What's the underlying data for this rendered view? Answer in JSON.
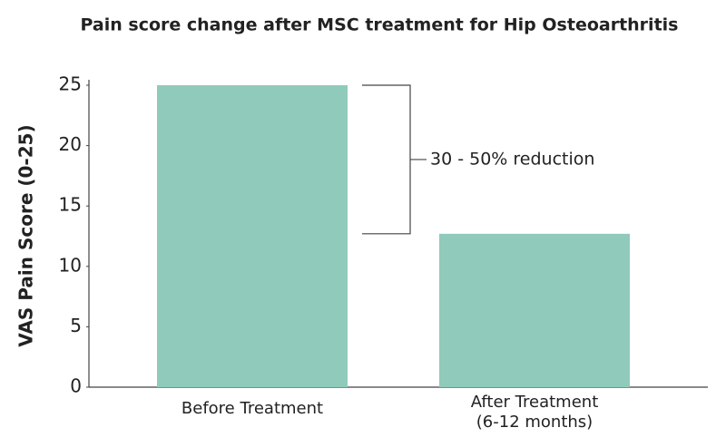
{
  "chart_data": {
    "type": "bar",
    "title": "Pain score change after MSC treatment for Hip Osteoarthritis",
    "y_label": "VAS Pain Score (0-25)",
    "categories": [
      "Before Treatment",
      "After Treatment\n(6-12 months)"
    ],
    "values": [
      25,
      12.7
    ],
    "color": "#8fcabb",
    "ylim": [
      0,
      25
    ],
    "yticks": [
      0,
      5,
      10,
      15,
      20,
      25
    ],
    "annotation": "30 - 50% reduction"
  }
}
